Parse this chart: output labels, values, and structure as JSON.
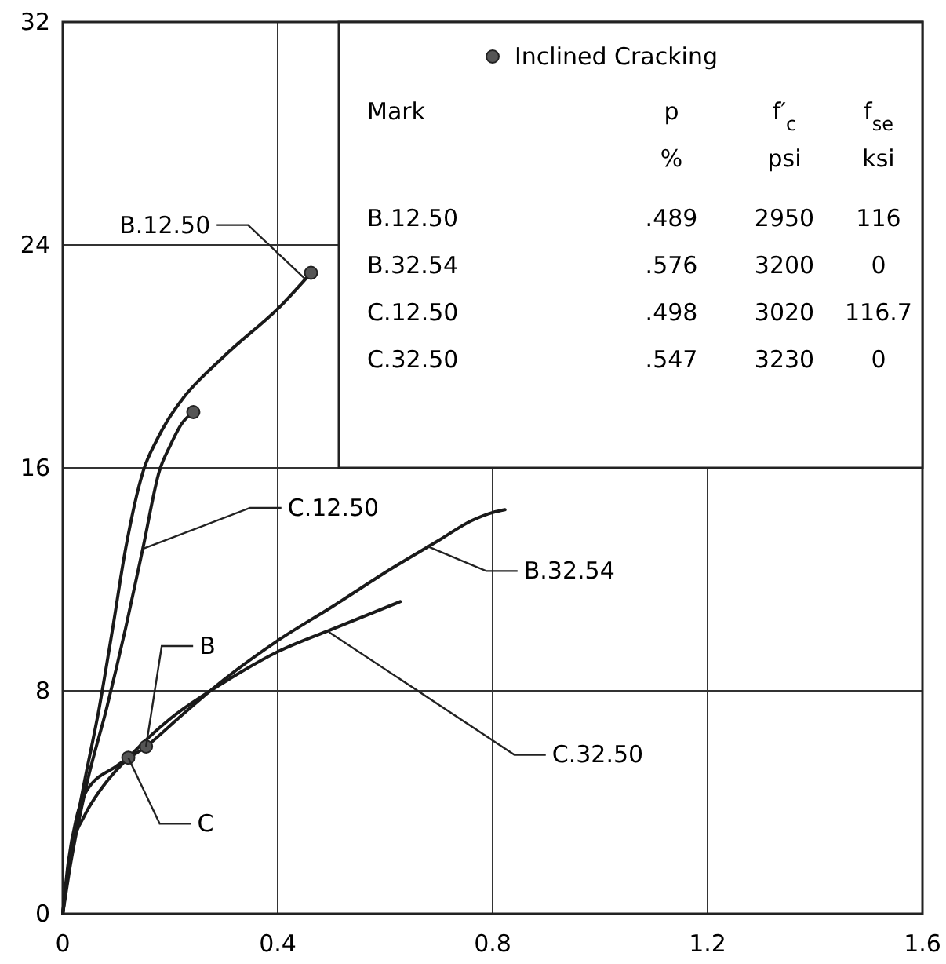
{
  "chart_data": {
    "type": "line",
    "xlim": [
      0,
      1.6
    ],
    "ylim": [
      0,
      32
    ],
    "xticks": [
      0,
      0.4,
      0.8,
      1.2,
      1.6
    ],
    "yticks": [
      0,
      8,
      16,
      24,
      32
    ],
    "grid": true,
    "legend": "top right",
    "line_style": "solid",
    "series": [
      {
        "color": "#1a1a1a",
        "x": [
          0,
          0.01,
          0.039,
          0.068,
          0.093,
          0.117,
          0.15,
          0.175,
          0.195,
          0.224,
          0.3,
          0.41,
          0.462
        ],
        "values": [
          0,
          1.5,
          4.6,
          7.4,
          10.25,
          13.1,
          15.9,
          17.0,
          17.7,
          18.5,
          20.0,
          21.9,
          23.0
        ]
      },
      {
        "color": "#1a1a1a",
        "x": [
          0,
          0.012,
          0.044,
          0.082,
          0.117,
          0.149,
          0.18,
          0.2,
          0.222,
          0.243
        ],
        "values": [
          0,
          1.5,
          4.6,
          7.4,
          10.25,
          13.1,
          15.9,
          16.8,
          17.6,
          18.0
        ]
      },
      {
        "color": "#1a1a1a",
        "x": [
          0,
          0.01,
          0.025,
          0.044,
          0.1,
          0.155,
          0.22,
          0.3,
          0.4,
          0.5,
          0.613,
          0.7,
          0.76,
          0.8,
          0.823
        ],
        "values": [
          0,
          1.8,
          3.4,
          4.4,
          5.3,
          6.0,
          7.1,
          8.4,
          9.8,
          11.0,
          12.4,
          13.4,
          14.1,
          14.4,
          14.5
        ]
      },
      {
        "color": "#1a1a1a",
        "x": [
          0,
          0.01,
          0.02,
          0.04,
          0.08,
          0.122,
          0.2,
          0.3,
          0.4,
          0.5,
          0.628
        ],
        "values": [
          0,
          1.6,
          2.6,
          3.5,
          4.7,
          5.6,
          7.0,
          8.3,
          9.4,
          10.2,
          11.2
        ]
      },
      {
        "type": "scatter",
        "name": "Inclined Cracking",
        "color": "#555555",
        "marker": "circle",
        "x": [
          0.462,
          0.243,
          0.155,
          0.122
        ],
        "values": [
          23.0,
          18.0,
          6.0,
          5.6
        ]
      }
    ],
    "annotations": [
      {
        "text": "B.12.50",
        "x": 0.45,
        "y": 22.8
      },
      {
        "text": "C.12.50",
        "x": 0.15,
        "y": 13.1
      },
      {
        "text": "B",
        "x": 0.155,
        "y": 6.0
      },
      {
        "text": "C",
        "x": 0.122,
        "y": 5.6
      },
      {
        "text": "B.32.54",
        "x": 0.677,
        "y": 13.2
      },
      {
        "text": "C.32.50",
        "x": 0.496,
        "y": 10.1
      },
      "Mark",
      "p",
      "f′$_{c}$",
      "f$_{se}$",
      "%",
      "psi",
      "ksi",
      "B.12.50",
      ".489",
      "2950",
      "116",
      "B.32.54",
      ".576",
      "3200",
      "0",
      "C.12.50",
      ".498",
      "3020",
      "116.7",
      "C.32.50",
      ".547",
      "3230",
      "0"
    ]
  }
}
